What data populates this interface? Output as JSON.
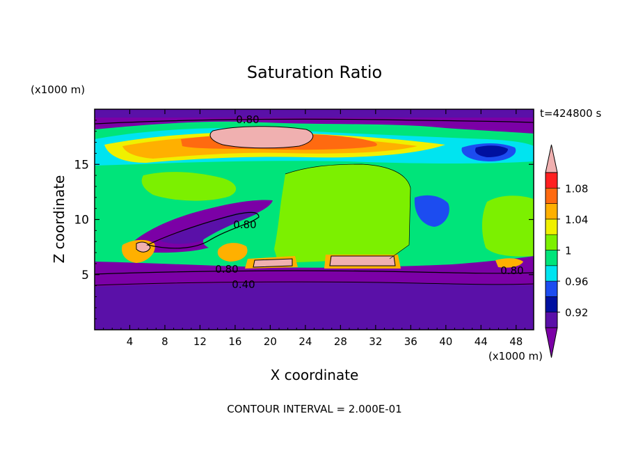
{
  "chart_data": {
    "type": "heatmap",
    "title": "Saturation Ratio",
    "xlabel": "X coordinate",
    "ylabel": "Z coordinate",
    "x_unit": "(x1000 m)",
    "y_unit": "(x1000 m)",
    "time_label": "t=424800 s",
    "footer": "CONTOUR INTERVAL = 2.000E-01",
    "xlim": [
      0,
      50
    ],
    "ylim": [
      0,
      20
    ],
    "x_ticks": [
      4,
      8,
      12,
      16,
      20,
      24,
      28,
      32,
      36,
      40,
      44,
      48
    ],
    "y_ticks": [
      5,
      10,
      15
    ],
    "colorbar": {
      "levels": [
        0.92,
        0.96,
        1,
        1.04,
        1.08
      ],
      "tick_labels": [
        "0.92",
        "0.96",
        "1",
        "1.04",
        "1.08"
      ],
      "bins": [
        {
          "range": "below",
          "color": "#7b00a6"
        },
        {
          "range": "0.90-0.92",
          "color": "#5a10a8"
        },
        {
          "range": "0.92-0.94",
          "color": "#0010a0"
        },
        {
          "range": "0.94-0.96",
          "color": "#1c4cf0"
        },
        {
          "range": "0.96-0.98",
          "color": "#00e4f0"
        },
        {
          "range": "0.98-1.00",
          "color": "#00e47a"
        },
        {
          "range": "1.00-1.02",
          "color": "#7cf000"
        },
        {
          "range": "1.02-1.04",
          "color": "#f0f000"
        },
        {
          "range": "1.04-1.06",
          "color": "#ffb000"
        },
        {
          "range": "1.06-1.08",
          "color": "#ff6a10"
        },
        {
          "range": "1.08-1.10",
          "color": "#ff2020"
        },
        {
          "range": "above",
          "color": "#f0b0b0"
        }
      ]
    },
    "contour_labels": [
      {
        "text": "0.80",
        "x": 17.5,
        "z": 19.0
      },
      {
        "text": "0.80",
        "x": 17.5,
        "z": 9.6
      },
      {
        "text": "0.80",
        "x": 15.0,
        "z": 5.4
      },
      {
        "text": "0.40",
        "x": 17.0,
        "z": 4.1
      },
      {
        "text": "0.80",
        "x": 47.0,
        "z": 5.3
      }
    ]
  }
}
